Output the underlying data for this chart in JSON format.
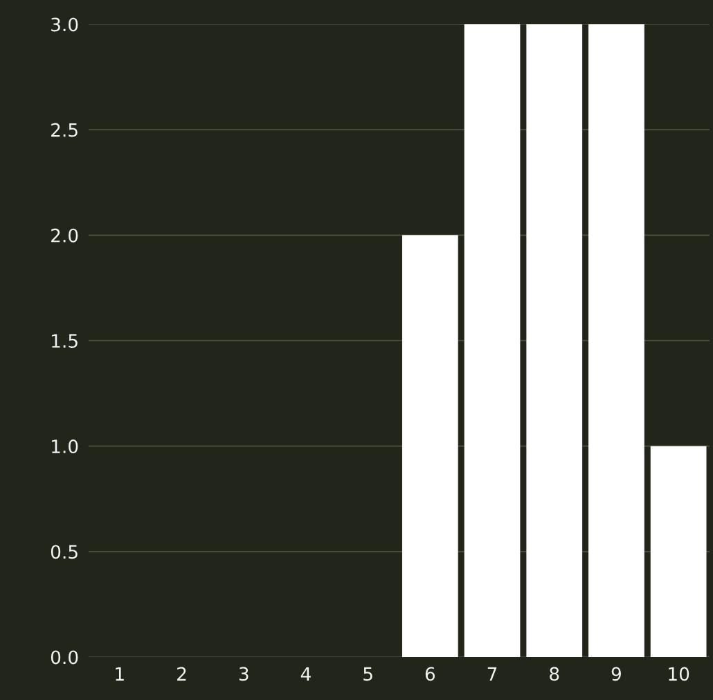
{
  "chart_data": {
    "type": "bar",
    "categories": [
      "1",
      "2",
      "3",
      "4",
      "5",
      "6",
      "7",
      "8",
      "9",
      "10"
    ],
    "values": [
      0,
      0,
      0,
      0,
      0,
      2,
      3,
      3,
      3,
      1
    ],
    "color": "#ffffff",
    "ylim": [
      0,
      3
    ],
    "yticks": [
      {
        "value": 0,
        "label": "0.0"
      },
      0.5,
      {
        "value": 1,
        "label": "1.0"
      },
      1.5,
      {
        "value": 2,
        "label": "2.0"
      },
      2.5,
      {
        "value": 3,
        "label": "3.0"
      }
    ],
    "grid": "y"
  }
}
